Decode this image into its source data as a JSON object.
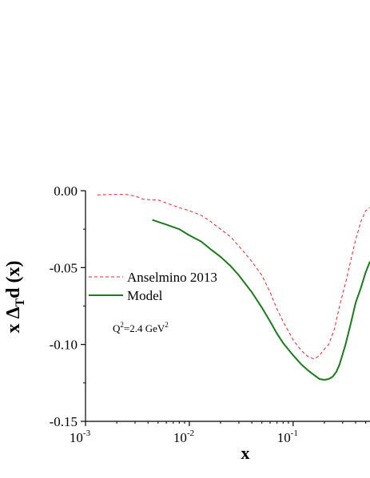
{
  "chart_data": {
    "type": "line",
    "xscale": "log",
    "xlim": [
      0.001,
      0.55
    ],
    "ylim": [
      -0.15,
      0.0
    ],
    "grid": false,
    "xlabel": "x",
    "ylabel": "x ΔTd (x)",
    "ylabel_parts": {
      "pre": "x Δ",
      "sub": "T",
      "post": "d (x)"
    },
    "yticks": [
      {
        "value": 0.0,
        "label": "0.00"
      },
      {
        "value": -0.05,
        "label": "-0.05"
      },
      {
        "value": -0.1,
        "label": "-0.10"
      },
      {
        "value": -0.15,
        "label": "-0.15"
      }
    ],
    "xticks": [
      {
        "value": 0.001,
        "base": "10",
        "exp": "-3"
      },
      {
        "value": 0.01,
        "base": "10",
        "exp": "-2"
      },
      {
        "value": 0.1,
        "base": "10",
        "exp": "-1"
      }
    ],
    "legend_position": "center-left",
    "annotation": {
      "pre": "Q",
      "sup1": "2",
      "mid": "=2.4 GeV",
      "sup2": "2"
    },
    "series": [
      {
        "name": "Anselmino 2013",
        "color": "#e8262b",
        "dash": "dashed",
        "x": [
          0.0013,
          0.0016,
          0.002,
          0.0025,
          0.003,
          0.0036,
          0.0045,
          0.005,
          0.006,
          0.008,
          0.01,
          0.013,
          0.016,
          0.02,
          0.025,
          0.03,
          0.04,
          0.05,
          0.06,
          0.07,
          0.08,
          0.1,
          0.12,
          0.14,
          0.16,
          0.18,
          0.2,
          0.22,
          0.25,
          0.28,
          0.32,
          0.36,
          0.4,
          0.45,
          0.5,
          0.55
        ],
        "y": [
          -0.0027,
          -0.0025,
          -0.0024,
          -0.0025,
          -0.0035,
          -0.0055,
          -0.006,
          -0.006,
          -0.008,
          -0.011,
          -0.013,
          -0.016,
          -0.02,
          -0.025,
          -0.03,
          -0.036,
          -0.046,
          -0.055,
          -0.066,
          -0.077,
          -0.085,
          -0.097,
          -0.104,
          -0.108,
          -0.1095,
          -0.107,
          -0.103,
          -0.1,
          -0.09,
          -0.075,
          -0.06,
          -0.045,
          -0.032,
          -0.02,
          -0.013,
          -0.011
        ]
      },
      {
        "name": "Model",
        "color": "#1b7a1b",
        "dash": "solid",
        "x": [
          0.0044,
          0.006,
          0.008,
          0.01,
          0.013,
          0.016,
          0.02,
          0.025,
          0.03,
          0.04,
          0.05,
          0.06,
          0.07,
          0.08,
          0.1,
          0.12,
          0.14,
          0.16,
          0.18,
          0.2,
          0.22,
          0.24,
          0.26,
          0.28,
          0.32,
          0.36,
          0.4,
          0.45,
          0.5,
          0.55
        ],
        "y": [
          -0.019,
          -0.022,
          -0.025,
          -0.029,
          -0.033,
          -0.038,
          -0.043,
          -0.049,
          -0.055,
          -0.066,
          -0.076,
          -0.085,
          -0.093,
          -0.099,
          -0.107,
          -0.113,
          -0.117,
          -0.12,
          -0.1225,
          -0.123,
          -0.1225,
          -0.121,
          -0.118,
          -0.113,
          -0.1,
          -0.086,
          -0.073,
          -0.063,
          -0.053,
          -0.046
        ]
      }
    ]
  }
}
